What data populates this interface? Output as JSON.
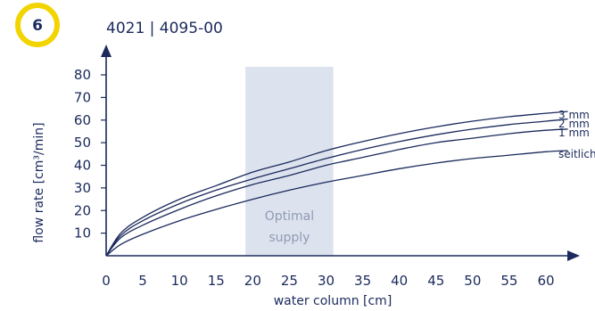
{
  "badge": {
    "number": "6",
    "ring_color": "#f2d400"
  },
  "title": "4021 | 4095-00",
  "colors": {
    "ink": "#1b2a5c",
    "band": "#dde3ee"
  },
  "chart_data": {
    "type": "line",
    "xlabel": "water column [cm]",
    "ylabel": "flow rate [cm³/min]",
    "xlim": [
      0,
      63
    ],
    "ylim": [
      0,
      84
    ],
    "x_ticks": [
      0,
      5,
      10,
      15,
      20,
      25,
      30,
      35,
      40,
      45,
      50,
      55,
      60
    ],
    "y_ticks": [
      10,
      20,
      30,
      40,
      50,
      60,
      70,
      80
    ],
    "shaded_region": {
      "x_range": [
        19,
        31
      ],
      "label": [
        "Optimal",
        "supply"
      ]
    },
    "series": [
      {
        "name": "3 mm",
        "x": [
          0,
          2,
          5,
          10,
          15,
          20,
          25,
          30,
          35,
          40,
          45,
          50,
          55,
          60,
          63
        ],
        "y": [
          0,
          10,
          17,
          25,
          31,
          37,
          41.5,
          46.5,
          50.5,
          54,
          57,
          59.5,
          61.5,
          63,
          63.8
        ]
      },
      {
        "name": "2 mm",
        "x": [
          0,
          2,
          5,
          10,
          15,
          20,
          25,
          30,
          35,
          40,
          45,
          50,
          55,
          60,
          63
        ],
        "y": [
          0,
          9,
          15.5,
          23,
          29,
          34,
          38.5,
          43,
          47,
          50.5,
          53.5,
          56,
          58,
          59.5,
          60.5
        ]
      },
      {
        "name": "1 mm",
        "x": [
          0,
          2,
          5,
          10,
          15,
          20,
          25,
          30,
          35,
          40,
          45,
          50,
          55,
          60,
          63
        ],
        "y": [
          0,
          8,
          13.5,
          20.5,
          26.5,
          31.5,
          35.5,
          40,
          43.5,
          47,
          50,
          52,
          54,
          55.5,
          56
        ]
      },
      {
        "name": "seitlich",
        "x": [
          0,
          2,
          5,
          10,
          15,
          20,
          25,
          30,
          35,
          40,
          45,
          50,
          55,
          60,
          63
        ],
        "y": [
          0,
          5,
          9.5,
          15.5,
          20.5,
          25,
          29,
          32.5,
          35.5,
          38.5,
          41,
          43,
          44.5,
          46,
          46.5
        ]
      }
    ]
  }
}
